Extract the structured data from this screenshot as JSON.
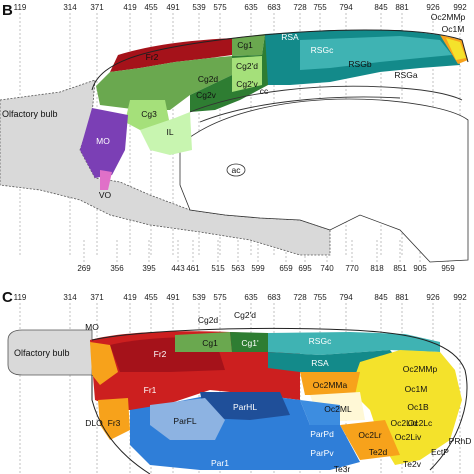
{
  "panel_b": {
    "letter": "B",
    "ticks_top": [
      "119",
      "314",
      "371",
      "419",
      "455",
      "491",
      "539",
      "575",
      "635",
      "683",
      "728",
      "755",
      "794",
      "845",
      "881",
      "926",
      "992"
    ],
    "ticks_bottom": [
      "269",
      "356",
      "395",
      "443",
      "461",
      "515",
      "563",
      "599",
      "659",
      "695",
      "740",
      "770",
      "818",
      "851",
      "905",
      "959"
    ],
    "labels": {
      "olfactory_bulb": "Olfactory bulb",
      "fr2": "Fr2",
      "cg1": "Cg1",
      "cg2d": "Cg2d",
      "cg2v": "Cg2v",
      "cg2pd": "Cg2'd",
      "cg2pv": "Cg2'v",
      "cg3": "Cg3",
      "il": "IL",
      "mo": "MO",
      "vo": "VO",
      "cc": "cc",
      "ac": "ac",
      "rsa": "RSA",
      "rsgc": "RSGc",
      "rsgb": "RSGb",
      "rsga": "RSGa",
      "oc2mmp": "Oc2MMp",
      "oc1m": "Oc1M"
    }
  },
  "panel_c": {
    "letter": "C",
    "ticks_top": [
      "119",
      "314",
      "371",
      "419",
      "455",
      "491",
      "539",
      "575",
      "635",
      "683",
      "728",
      "755",
      "794",
      "845",
      "881",
      "926",
      "992"
    ],
    "labels": {
      "olfactory_bulb": "Olfactory bulb",
      "mo": "MO",
      "dlo": "DLO",
      "fr2": "Fr2",
      "fr1": "Fr1",
      "fr3": "Fr3",
      "cg1": "Cg1",
      "cg1p": "Cg1'",
      "cg2d": "Cg2d",
      "cg2pd": "Cg2'd",
      "rsgc": "RSGc",
      "rsa": "RSA",
      "parhl": "ParHL",
      "parfl": "ParFL",
      "par1": "Par1",
      "parpd": "ParPd",
      "parpv": "ParPv",
      "oc2mma": "Oc2MMa",
      "oc2mmp": "Oc2MMp",
      "oc2ml": "Oc2ML",
      "oc1m": "Oc1M",
      "oc1b": "Oc1B",
      "oc2lc": "Oc2Lc",
      "oc2lr": "Oc2Lr",
      "oc2lid": "Oc2Lid",
      "oc2liv": "Oc2Liv",
      "te2d": "Te2d",
      "te2v": "Te2v",
      "te3r": "Te3r",
      "ectp": "EctP",
      "prhd": "PRhD"
    }
  },
  "colors": {
    "red": "#cc1f1f",
    "dark_red": "#a5121a",
    "green": "#6aa84f",
    "dark_green": "#2e7d32",
    "light_green": "#a5e07a",
    "pale_green": "#c8f5b0",
    "purple": "#7b3fb5",
    "teal": "#138a8a",
    "teal_light": "#3fb3b3",
    "blue": "#2f7ed8",
    "light_blue": "#8db3e2",
    "yellow": "#f4e22b",
    "orange": "#f7a21b",
    "grey": "#d9d9d9"
  }
}
